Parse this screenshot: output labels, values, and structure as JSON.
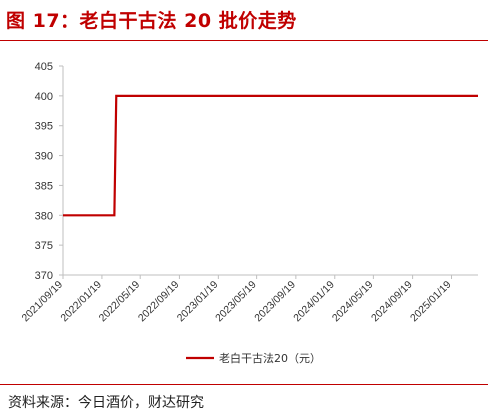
{
  "figure_title": "图 17：老白干古法 20 批价走势",
  "source_text": "资料来源：今日酒价，财达研究",
  "colors": {
    "accent": "#c00000",
    "series_line": "#c00000",
    "axis": "#bfbfbf",
    "tick_text": "#333333"
  },
  "chart_data": {
    "type": "line",
    "title": "",
    "xlabel": "",
    "ylabel": "",
    "ylim": [
      370,
      405
    ],
    "yticks": [
      370,
      375,
      380,
      385,
      390,
      395,
      400,
      405
    ],
    "xlim": [
      "2021-09-19",
      "2025-04-12"
    ],
    "xticks": [
      "2021/09/19",
      "2022/01/19",
      "2022/05/19",
      "2022/09/19",
      "2023/01/19",
      "2023/05/19",
      "2023/09/19",
      "2024/01/19",
      "2024/05/19",
      "2024/09/19",
      "2025/01/19"
    ],
    "grid": false,
    "legend_position": "bottom",
    "series": [
      {
        "name": "老白干古法20（元）",
        "points": [
          {
            "x": "2021-09-19",
            "y": 380
          },
          {
            "x": "2022-02-27",
            "y": 380
          },
          {
            "x": "2022-03-05",
            "y": 400
          },
          {
            "x": "2025-04-12",
            "y": 400
          }
        ]
      }
    ]
  }
}
